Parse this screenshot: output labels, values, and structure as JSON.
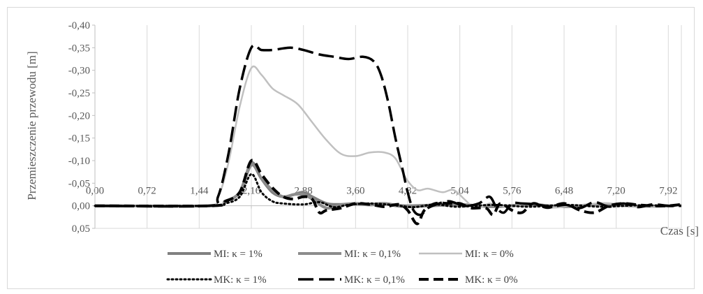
{
  "chart_data": {
    "type": "line",
    "title": "",
    "xlabel": "Czas [s]",
    "ylabel": "Przemieszczenie przewodu  [m]",
    "xlim": [
      0,
      8.1
    ],
    "ylim": [
      -0.4,
      0.05
    ],
    "y_reversed": true,
    "x_ticks": [
      "0,00",
      "0,72",
      "1,44",
      "2,16",
      "2,88",
      "3,60",
      "4,32",
      "5,04",
      "5,76",
      "6,48",
      "7,20",
      "7,92"
    ],
    "y_ticks": [
      "-0,40",
      "-0,35",
      "-0,30",
      "-0,25",
      "-0,20",
      "-0,15",
      "-0,10",
      "-0,05",
      "0,00",
      "0,05"
    ],
    "y_tick_values": [
      -0.4,
      -0.35,
      -0.3,
      -0.25,
      -0.2,
      -0.15,
      -0.1,
      -0.05,
      0.0,
      0.05
    ],
    "grid": "vertical",
    "legend_position": "bottom",
    "series": [
      {
        "name": "MI: κ = 1%",
        "color": "#808080",
        "style": "solid-thick",
        "points": [
          [
            0,
            0
          ],
          [
            1.6,
            0
          ],
          [
            1.8,
            -0.01
          ],
          [
            2.0,
            -0.03
          ],
          [
            2.16,
            -0.095
          ],
          [
            2.3,
            -0.06
          ],
          [
            2.45,
            -0.03
          ],
          [
            2.6,
            -0.02
          ],
          [
            2.75,
            -0.025
          ],
          [
            2.88,
            -0.03
          ],
          [
            3.0,
            -0.02
          ],
          [
            3.2,
            -0.005
          ],
          [
            3.4,
            -0.003
          ],
          [
            3.6,
            -0.005
          ],
          [
            3.8,
            -0.003
          ],
          [
            4.0,
            -0.005
          ],
          [
            4.3,
            0.0
          ],
          [
            5.0,
            -0.003
          ],
          [
            5.5,
            0.002
          ],
          [
            6.0,
            -0.003
          ],
          [
            6.5,
            0.002
          ],
          [
            7.0,
            -0.004
          ],
          [
            7.5,
            0.001
          ],
          [
            8.0,
            0.0
          ]
        ]
      },
      {
        "name": "MI: κ = 0,1%",
        "color": "#8c8c8c",
        "style": "solid-thick",
        "points": [
          [
            0,
            0
          ],
          [
            1.6,
            0
          ],
          [
            1.8,
            -0.01
          ],
          [
            2.0,
            -0.03
          ],
          [
            2.16,
            -0.09
          ],
          [
            2.3,
            -0.06
          ],
          [
            2.45,
            -0.035
          ],
          [
            2.6,
            -0.02
          ],
          [
            2.75,
            -0.025
          ],
          [
            2.88,
            -0.025
          ],
          [
            3.0,
            -0.015
          ],
          [
            3.2,
            0.005
          ],
          [
            3.4,
            -0.002
          ],
          [
            3.6,
            -0.004
          ],
          [
            3.8,
            -0.002
          ],
          [
            4.0,
            -0.004
          ],
          [
            4.3,
            0.002
          ],
          [
            5.0,
            -0.002
          ],
          [
            5.5,
            0.002
          ],
          [
            6.0,
            -0.002
          ],
          [
            6.5,
            0.001
          ],
          [
            7.0,
            -0.003
          ],
          [
            7.5,
            0.001
          ],
          [
            8.0,
            0.0
          ]
        ]
      },
      {
        "name": "MI: κ = 0%",
        "color": "#c0c0c0",
        "style": "solid",
        "points": [
          [
            0,
            0
          ],
          [
            1.5,
            0
          ],
          [
            1.7,
            -0.02
          ],
          [
            1.85,
            -0.1
          ],
          [
            2.0,
            -0.22
          ],
          [
            2.16,
            -0.305
          ],
          [
            2.3,
            -0.29
          ],
          [
            2.45,
            -0.26
          ],
          [
            2.6,
            -0.245
          ],
          [
            2.8,
            -0.225
          ],
          [
            3.0,
            -0.185
          ],
          [
            3.2,
            -0.145
          ],
          [
            3.4,
            -0.115
          ],
          [
            3.6,
            -0.11
          ],
          [
            3.8,
            -0.118
          ],
          [
            4.0,
            -0.118
          ],
          [
            4.15,
            -0.105
          ],
          [
            4.3,
            -0.06
          ],
          [
            4.45,
            -0.035
          ],
          [
            4.6,
            -0.038
          ],
          [
            4.8,
            -0.03
          ],
          [
            4.95,
            -0.035
          ],
          [
            5.1,
            -0.015
          ],
          [
            5.2,
            0.0
          ],
          [
            5.3,
            0.005
          ],
          [
            5.45,
            -0.005
          ],
          [
            5.6,
            0.0
          ],
          [
            5.76,
            0.002
          ],
          [
            6.0,
            -0.005
          ],
          [
            6.3,
            0.004
          ],
          [
            6.6,
            0.0
          ],
          [
            7.0,
            -0.006
          ],
          [
            7.2,
            -0.004
          ],
          [
            7.5,
            0.002
          ],
          [
            7.92,
            0.0
          ],
          [
            8.1,
            -0.003
          ]
        ]
      },
      {
        "name": "MK: κ = 1%",
        "color": "#000000",
        "style": "dotted",
        "points": [
          [
            0,
            0
          ],
          [
            1.6,
            0
          ],
          [
            1.8,
            -0.005
          ],
          [
            2.0,
            -0.02
          ],
          [
            2.16,
            -0.07
          ],
          [
            2.3,
            -0.03
          ],
          [
            2.45,
            -0.01
          ],
          [
            2.6,
            -0.005
          ],
          [
            2.88,
            -0.003
          ],
          [
            3.1,
            -0.008
          ],
          [
            3.3,
            0.003
          ],
          [
            3.5,
            -0.002
          ],
          [
            3.8,
            -0.005
          ],
          [
            4.1,
            -0.002
          ],
          [
            4.4,
            0.003
          ],
          [
            4.7,
            -0.003
          ],
          [
            5.0,
            0.002
          ],
          [
            5.5,
            -0.002
          ],
          [
            6.0,
            0.002
          ],
          [
            6.5,
            -0.002
          ],
          [
            7.0,
            0.002
          ],
          [
            7.5,
            -0.001
          ],
          [
            8.0,
            0.0
          ]
        ]
      },
      {
        "name": "MK: κ = 0,1%",
        "color": "#000000",
        "style": "dashed-long",
        "points": [
          [
            0,
            0
          ],
          [
            1.55,
            0
          ],
          [
            1.7,
            -0.02
          ],
          [
            1.85,
            -0.12
          ],
          [
            2.0,
            -0.26
          ],
          [
            2.16,
            -0.35
          ],
          [
            2.3,
            -0.345
          ],
          [
            2.45,
            -0.345
          ],
          [
            2.7,
            -0.35
          ],
          [
            2.88,
            -0.345
          ],
          [
            3.1,
            -0.335
          ],
          [
            3.3,
            -0.33
          ],
          [
            3.5,
            -0.325
          ],
          [
            3.7,
            -0.33
          ],
          [
            3.85,
            -0.32
          ],
          [
            3.95,
            -0.29
          ],
          [
            4.05,
            -0.23
          ],
          [
            4.15,
            -0.15
          ],
          [
            4.25,
            -0.08
          ],
          [
            4.32,
            -0.03
          ],
          [
            4.4,
            0.01
          ],
          [
            4.5,
            0.02
          ],
          [
            4.6,
            0.005
          ],
          [
            4.75,
            -0.005
          ],
          [
            4.9,
            -0.01
          ],
          [
            5.1,
            0.0
          ],
          [
            5.3,
            -0.005
          ],
          [
            5.45,
            -0.02
          ],
          [
            5.55,
            0.005
          ],
          [
            5.65,
            0.015
          ],
          [
            5.76,
            -0.005
          ],
          [
            5.9,
            -0.005
          ],
          [
            6.1,
            -0.003
          ],
          [
            6.3,
            0.002
          ],
          [
            6.5,
            -0.002
          ],
          [
            6.7,
            0.005
          ],
          [
            6.9,
            -0.008
          ],
          [
            7.1,
            0.002
          ],
          [
            7.3,
            -0.005
          ],
          [
            7.5,
            0.003
          ],
          [
            7.7,
            -0.003
          ],
          [
            7.92,
            0.0
          ],
          [
            8.1,
            0.0
          ]
        ]
      },
      {
        "name": "MK: κ = 0%",
        "color": "#000000",
        "style": "dashed-thick",
        "points": [
          [
            0,
            0
          ],
          [
            1.6,
            0
          ],
          [
            1.8,
            -0.01
          ],
          [
            2.0,
            -0.03
          ],
          [
            2.16,
            -0.1
          ],
          [
            2.3,
            -0.07
          ],
          [
            2.45,
            -0.04
          ],
          [
            2.6,
            -0.02
          ],
          [
            2.75,
            -0.015
          ],
          [
            2.88,
            -0.02
          ],
          [
            3.0,
            -0.015
          ],
          [
            3.1,
            0.015
          ],
          [
            3.2,
            0.01
          ],
          [
            3.4,
            0.005
          ],
          [
            3.6,
            -0.005
          ],
          [
            3.8,
            -0.003
          ],
          [
            4.0,
            0.002
          ],
          [
            4.2,
            -0.003
          ],
          [
            4.32,
            0.01
          ],
          [
            4.45,
            0.04
          ],
          [
            4.55,
            0.01
          ],
          [
            4.7,
            -0.005
          ],
          [
            4.9,
            -0.005
          ],
          [
            5.04,
            -0.005
          ],
          [
            5.2,
            0.005
          ],
          [
            5.4,
            0.005
          ],
          [
            5.5,
            0.02
          ],
          [
            5.6,
            -0.005
          ],
          [
            5.76,
            0.01
          ],
          [
            5.9,
            0.015
          ],
          [
            6.05,
            -0.005
          ],
          [
            6.25,
            0.004
          ],
          [
            6.48,
            -0.005
          ],
          [
            6.7,
            0.01
          ],
          [
            6.9,
            0.015
          ],
          [
            7.1,
            0.0
          ],
          [
            7.3,
            -0.005
          ],
          [
            7.5,
            -0.002
          ],
          [
            7.7,
            0.0
          ],
          [
            7.92,
            0.0
          ],
          [
            8.1,
            -0.003
          ]
        ]
      }
    ]
  }
}
